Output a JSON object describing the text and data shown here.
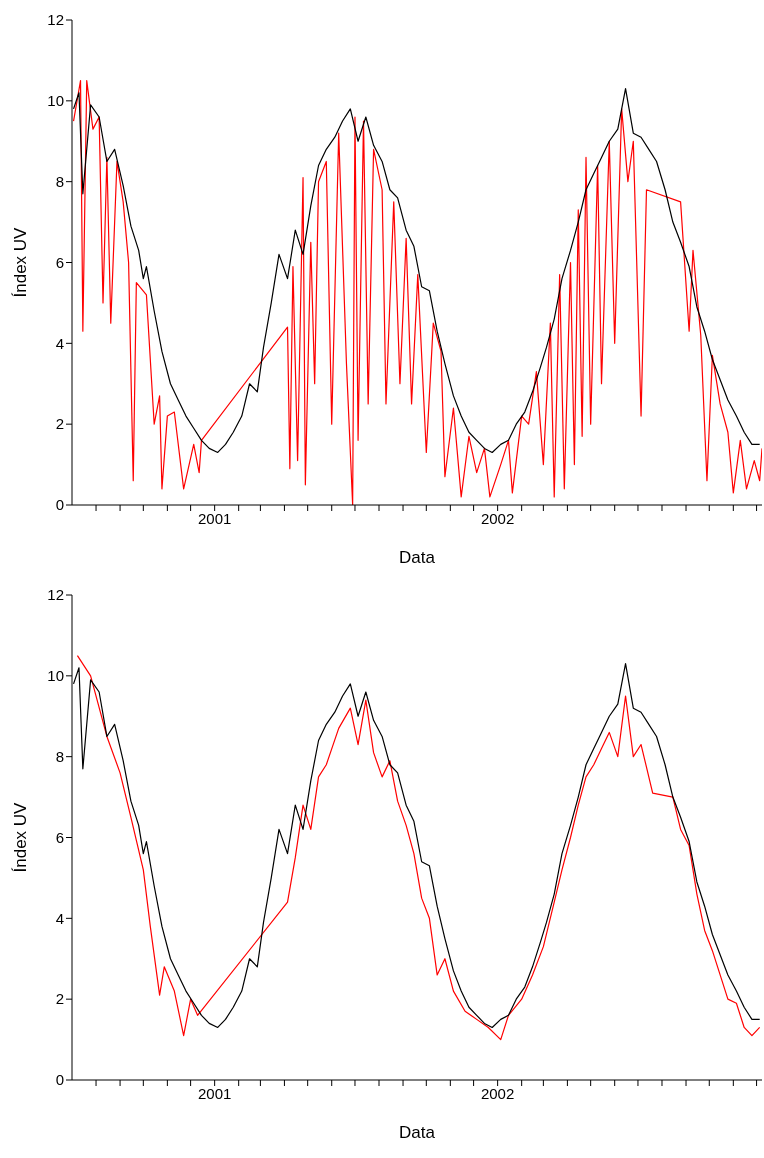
{
  "chart_data": [
    {
      "type": "line",
      "xlabel": "Data",
      "ylabel": "Índex UV",
      "xlim": [
        "2000-07-01",
        "2002-12-08"
      ],
      "ylim": [
        0,
        12
      ],
      "yticks": [
        0,
        2,
        4,
        6,
        8,
        10,
        12
      ],
      "xticks": [
        {
          "value": "2000-08-01",
          "label": null
        },
        {
          "value": "2000-09-01",
          "label": null
        },
        {
          "value": "2000-10-01",
          "label": null
        },
        {
          "value": "2000-11-01",
          "label": null
        },
        {
          "value": "2000-12-01",
          "label": null
        },
        {
          "value": "2001-01-01",
          "label": "2001"
        },
        {
          "value": "2001-02-01",
          "label": null
        },
        {
          "value": "2001-03-01",
          "label": null
        },
        {
          "value": "2001-04-01",
          "label": null
        },
        {
          "value": "2001-05-01",
          "label": null
        },
        {
          "value": "2001-06-01",
          "label": null
        },
        {
          "value": "2001-07-01",
          "label": null
        },
        {
          "value": "2001-08-01",
          "label": null
        },
        {
          "value": "2001-09-01",
          "label": null
        },
        {
          "value": "2001-10-01",
          "label": null
        },
        {
          "value": "2001-11-01",
          "label": null
        },
        {
          "value": "2001-12-01",
          "label": null
        },
        {
          "value": "2002-01-01",
          "label": "2002"
        },
        {
          "value": "2002-02-01",
          "label": null
        },
        {
          "value": "2002-03-01",
          "label": null
        },
        {
          "value": "2002-04-01",
          "label": null
        },
        {
          "value": "2002-05-01",
          "label": null
        },
        {
          "value": "2002-06-01",
          "label": null
        },
        {
          "value": "2002-07-01",
          "label": null
        },
        {
          "value": "2002-08-01",
          "label": null
        },
        {
          "value": "2002-09-01",
          "label": null
        },
        {
          "value": "2002-10-01",
          "label": null
        },
        {
          "value": "2002-11-01",
          "label": null
        },
        {
          "value": "2002-12-01",
          "label": null
        }
      ],
      "grid": false,
      "legend": false,
      "marker": "none",
      "line_style": "solid",
      "series": [
        {
          "color": "#ff0000",
          "x": [
            "2000-07-03",
            "2000-07-12",
            "2000-07-15",
            "2000-07-20",
            "2000-07-28",
            "2000-08-05",
            "2000-08-10",
            "2000-08-15",
            "2000-08-20",
            "2000-08-28",
            "2000-09-05",
            "2000-09-12",
            "2000-09-18",
            "2000-09-22",
            "2000-10-05",
            "2000-10-15",
            "2000-10-22",
            "2000-10-25",
            "2000-11-01",
            "2000-11-10",
            "2000-11-22",
            "2000-12-05",
            "2000-12-12",
            "2000-12-15",
            "2001-04-05",
            "2001-04-08",
            "2001-04-12",
            "2001-04-18",
            "2001-04-25",
            "2001-04-28",
            "2001-05-05",
            "2001-05-10",
            "2001-05-15",
            "2001-05-25",
            "2001-06-01",
            "2001-06-10",
            "2001-06-20",
            "2001-06-28",
            "2001-07-01",
            "2001-07-05",
            "2001-07-12",
            "2001-07-18",
            "2001-07-25",
            "2001-08-05",
            "2001-08-10",
            "2001-08-20",
            "2001-08-28",
            "2001-09-05",
            "2001-09-12",
            "2001-09-20",
            "2001-10-01",
            "2001-10-10",
            "2001-10-20",
            "2001-10-25",
            "2001-11-05",
            "2001-11-15",
            "2001-11-25",
            "2001-12-05",
            "2001-12-15",
            "2001-12-22",
            "2002-01-05",
            "2002-01-15",
            "2002-01-20",
            "2002-02-01",
            "2002-02-10",
            "2002-02-20",
            "2002-03-01",
            "2002-03-10",
            "2002-03-15",
            "2002-03-22",
            "2002-03-28",
            "2002-04-05",
            "2002-04-10",
            "2002-04-15",
            "2002-04-20",
            "2002-04-25",
            "2002-05-01",
            "2002-05-10",
            "2002-05-15",
            "2002-05-25",
            "2002-06-01",
            "2002-06-10",
            "2002-06-18",
            "2002-06-25",
            "2002-07-05",
            "2002-07-12",
            "2002-08-25",
            "2002-09-05",
            "2002-09-10",
            "2002-09-20",
            "2002-09-28",
            "2002-10-05",
            "2002-10-15",
            "2002-10-25",
            "2002-11-01",
            "2002-11-10",
            "2002-11-18",
            "2002-11-28",
            "2002-12-05",
            "2002-12-08"
          ],
          "values": [
            9.5,
            10.5,
            4.3,
            10.5,
            9.3,
            9.6,
            5.0,
            8.6,
            4.5,
            8.5,
            7.5,
            6.0,
            0.6,
            5.5,
            5.2,
            2.0,
            2.7,
            0.4,
            2.2,
            2.3,
            0.4,
            1.5,
            0.8,
            1.6,
            4.4,
            0.9,
            5.9,
            1.1,
            8.1,
            0.5,
            6.5,
            3.0,
            8.0,
            8.5,
            2.0,
            9.2,
            3.5,
            0.0,
            9.6,
            1.6,
            9.5,
            2.5,
            8.8,
            7.8,
            2.5,
            7.5,
            3.0,
            6.6,
            2.5,
            5.7,
            1.3,
            4.5,
            3.8,
            0.7,
            2.4,
            0.2,
            1.7,
            0.8,
            1.4,
            0.2,
            1.0,
            1.6,
            0.3,
            2.2,
            2.0,
            3.3,
            1.0,
            4.5,
            0.2,
            5.7,
            0.4,
            6.0,
            1.0,
            7.3,
            1.7,
            8.6,
            2.0,
            8.4,
            3.0,
            9.0,
            4.0,
            9.8,
            8.0,
            9.0,
            2.2,
            7.8,
            7.5,
            4.3,
            6.3,
            4.2,
            0.6,
            3.7,
            2.5,
            1.8,
            0.3,
            1.6,
            0.4,
            1.1,
            0.6,
            1.4
          ]
        },
        {
          "color": "#000000",
          "x": [
            "2000-07-03",
            "2000-07-10",
            "2000-07-15",
            "2000-07-25",
            "2000-08-05",
            "2000-08-15",
            "2000-08-25",
            "2000-09-05",
            "2000-09-15",
            "2000-09-25",
            "2000-10-01",
            "2000-10-05",
            "2000-10-15",
            "2000-10-25",
            "2000-11-05",
            "2000-11-15",
            "2000-11-25",
            "2000-12-05",
            "2000-12-15",
            "2000-12-25",
            "2001-01-05",
            "2001-01-15",
            "2001-01-25",
            "2001-02-05",
            "2001-02-15",
            "2001-02-25",
            "2001-03-05",
            "2001-03-15",
            "2001-03-25",
            "2001-04-05",
            "2001-04-15",
            "2001-04-25",
            "2001-05-05",
            "2001-05-15",
            "2001-05-25",
            "2001-06-05",
            "2001-06-15",
            "2001-06-25",
            "2001-07-05",
            "2001-07-15",
            "2001-07-25",
            "2001-08-05",
            "2001-08-15",
            "2001-08-25",
            "2001-09-05",
            "2001-09-15",
            "2001-09-25",
            "2001-10-05",
            "2001-10-15",
            "2001-10-25",
            "2001-11-05",
            "2001-11-15",
            "2001-11-25",
            "2001-12-05",
            "2001-12-15",
            "2001-12-25",
            "2002-01-05",
            "2002-01-15",
            "2002-01-25",
            "2002-02-05",
            "2002-02-15",
            "2002-02-25",
            "2002-03-05",
            "2002-03-15",
            "2002-03-25",
            "2002-04-05",
            "2002-04-15",
            "2002-04-25",
            "2002-05-05",
            "2002-05-15",
            "2002-05-25",
            "2002-06-05",
            "2002-06-15",
            "2002-06-25",
            "2002-07-05",
            "2002-07-15",
            "2002-07-25",
            "2002-08-05",
            "2002-08-15",
            "2002-08-25",
            "2002-09-05",
            "2002-09-15",
            "2002-09-25",
            "2002-10-05",
            "2002-10-15",
            "2002-10-25",
            "2002-11-05",
            "2002-11-15",
            "2002-11-25",
            "2002-12-05"
          ],
          "values": [
            9.8,
            10.2,
            7.7,
            9.9,
            9.6,
            8.5,
            8.8,
            7.9,
            6.9,
            6.3,
            5.6,
            5.9,
            4.8,
            3.8,
            3.0,
            2.6,
            2.2,
            1.9,
            1.6,
            1.4,
            1.3,
            1.5,
            1.8,
            2.2,
            3.0,
            2.8,
            3.9,
            5.0,
            6.2,
            5.6,
            6.8,
            6.2,
            7.4,
            8.4,
            8.8,
            9.1,
            9.5,
            9.8,
            9.0,
            9.6,
            8.9,
            8.5,
            7.8,
            7.6,
            6.8,
            6.4,
            5.4,
            5.3,
            4.3,
            3.5,
            2.7,
            2.2,
            1.8,
            1.6,
            1.4,
            1.3,
            1.5,
            1.6,
            2.0,
            2.3,
            2.8,
            3.4,
            3.9,
            4.6,
            5.6,
            6.3,
            7.0,
            7.8,
            8.2,
            8.6,
            9.0,
            9.3,
            10.3,
            9.2,
            9.1,
            8.8,
            8.5,
            7.8,
            7.0,
            6.5,
            5.9,
            4.9,
            4.3,
            3.6,
            3.1,
            2.6,
            2.2,
            1.8,
            1.5,
            1.5
          ]
        }
      ]
    },
    {
      "type": "line",
      "xlabel": "Data",
      "ylabel": "Índex UV",
      "xlim": [
        "2000-07-01",
        "2002-12-08"
      ],
      "ylim": [
        0,
        12
      ],
      "yticks": [
        0,
        2,
        4,
        6,
        8,
        10,
        12
      ],
      "xticks": [
        {
          "value": "2000-08-01",
          "label": null
        },
        {
          "value": "2000-09-01",
          "label": null
        },
        {
          "value": "2000-10-01",
          "label": null
        },
        {
          "value": "2000-11-01",
          "label": null
        },
        {
          "value": "2000-12-01",
          "label": null
        },
        {
          "value": "2001-01-01",
          "label": "2001"
        },
        {
          "value": "2001-02-01",
          "label": null
        },
        {
          "value": "2001-03-01",
          "label": null
        },
        {
          "value": "2001-04-01",
          "label": null
        },
        {
          "value": "2001-05-01",
          "label": null
        },
        {
          "value": "2001-06-01",
          "label": null
        },
        {
          "value": "2001-07-01",
          "label": null
        },
        {
          "value": "2001-08-01",
          "label": null
        },
        {
          "value": "2001-09-01",
          "label": null
        },
        {
          "value": "2001-10-01",
          "label": null
        },
        {
          "value": "2001-11-01",
          "label": null
        },
        {
          "value": "2001-12-01",
          "label": null
        },
        {
          "value": "2002-01-01",
          "label": "2002"
        },
        {
          "value": "2002-02-01",
          "label": null
        },
        {
          "value": "2002-03-01",
          "label": null
        },
        {
          "value": "2002-04-01",
          "label": null
        },
        {
          "value": "2002-05-01",
          "label": null
        },
        {
          "value": "2002-06-01",
          "label": null
        },
        {
          "value": "2002-07-01",
          "label": null
        },
        {
          "value": "2002-08-01",
          "label": null
        },
        {
          "value": "2002-09-01",
          "label": null
        },
        {
          "value": "2002-10-01",
          "label": null
        },
        {
          "value": "2002-11-01",
          "label": null
        },
        {
          "value": "2002-12-01",
          "label": null
        }
      ],
      "grid": false,
      "legend": false,
      "marker": "none",
      "line_style": "solid",
      "series": [
        {
          "color": "#ff0000",
          "x": [
            "2000-07-08",
            "2000-07-25",
            "2000-08-15",
            "2000-09-01",
            "2000-09-15",
            "2000-10-01",
            "2000-10-10",
            "2000-10-22",
            "2000-10-28",
            "2000-11-10",
            "2000-11-22",
            "2000-12-01",
            "2000-12-10",
            "2001-04-05",
            "2001-04-15",
            "2001-04-25",
            "2001-05-05",
            "2001-05-15",
            "2001-05-25",
            "2001-06-10",
            "2001-06-25",
            "2001-07-05",
            "2001-07-15",
            "2001-07-25",
            "2001-08-05",
            "2001-08-15",
            "2001-08-25",
            "2001-09-05",
            "2001-09-15",
            "2001-09-25",
            "2001-10-05",
            "2001-10-15",
            "2001-10-25",
            "2001-11-05",
            "2001-11-20",
            "2001-12-05",
            "2001-12-20",
            "2002-01-05",
            "2002-01-15",
            "2002-02-01",
            "2002-02-15",
            "2002-03-01",
            "2002-03-15",
            "2002-03-25",
            "2002-04-05",
            "2002-04-15",
            "2002-04-25",
            "2002-05-05",
            "2002-05-15",
            "2002-05-25",
            "2002-06-05",
            "2002-06-15",
            "2002-06-25",
            "2002-07-05",
            "2002-07-20",
            "2002-08-15",
            "2002-08-25",
            "2002-09-05",
            "2002-09-15",
            "2002-09-25",
            "2002-10-05",
            "2002-10-15",
            "2002-10-25",
            "2002-11-05",
            "2002-11-15",
            "2002-11-25",
            "2002-12-05"
          ],
          "values": [
            10.5,
            10.0,
            8.5,
            7.6,
            6.5,
            5.2,
            3.8,
            2.1,
            2.8,
            2.2,
            1.1,
            2.0,
            1.6,
            4.4,
            5.5,
            6.8,
            6.2,
            7.5,
            7.8,
            8.7,
            9.2,
            8.3,
            9.4,
            8.1,
            7.5,
            7.9,
            6.9,
            6.3,
            5.6,
            4.5,
            4.0,
            2.6,
            3.0,
            2.2,
            1.7,
            1.5,
            1.3,
            1.0,
            1.6,
            2.0,
            2.6,
            3.3,
            4.4,
            5.2,
            6.0,
            6.8,
            7.5,
            7.8,
            8.2,
            8.6,
            8.0,
            9.5,
            8.0,
            8.3,
            7.1,
            7.0,
            6.2,
            5.8,
            4.6,
            3.7,
            3.2,
            2.6,
            2.0,
            1.9,
            1.3,
            1.1,
            1.3
          ]
        },
        {
          "color": "#000000",
          "x": [
            "2000-07-03",
            "2000-07-10",
            "2000-07-15",
            "2000-07-25",
            "2000-08-05",
            "2000-08-15",
            "2000-08-25",
            "2000-09-05",
            "2000-09-15",
            "2000-09-25",
            "2000-10-01",
            "2000-10-05",
            "2000-10-15",
            "2000-10-25",
            "2000-11-05",
            "2000-11-15",
            "2000-11-25",
            "2000-12-05",
            "2000-12-15",
            "2000-12-25",
            "2001-01-05",
            "2001-01-15",
            "2001-01-25",
            "2001-02-05",
            "2001-02-15",
            "2001-02-25",
            "2001-03-05",
            "2001-03-15",
            "2001-03-25",
            "2001-04-05",
            "2001-04-15",
            "2001-04-25",
            "2001-05-05",
            "2001-05-15",
            "2001-05-25",
            "2001-06-05",
            "2001-06-15",
            "2001-06-25",
            "2001-07-05",
            "2001-07-15",
            "2001-07-25",
            "2001-08-05",
            "2001-08-15",
            "2001-08-25",
            "2001-09-05",
            "2001-09-15",
            "2001-09-25",
            "2001-10-05",
            "2001-10-15",
            "2001-10-25",
            "2001-11-05",
            "2001-11-15",
            "2001-11-25",
            "2001-12-05",
            "2001-12-15",
            "2001-12-25",
            "2002-01-05",
            "2002-01-15",
            "2002-01-25",
            "2002-02-05",
            "2002-02-15",
            "2002-02-25",
            "2002-03-05",
            "2002-03-15",
            "2002-03-25",
            "2002-04-05",
            "2002-04-15",
            "2002-04-25",
            "2002-05-05",
            "2002-05-15",
            "2002-05-25",
            "2002-06-05",
            "2002-06-15",
            "2002-06-25",
            "2002-07-05",
            "2002-07-15",
            "2002-07-25",
            "2002-08-05",
            "2002-08-15",
            "2002-08-25",
            "2002-09-05",
            "2002-09-15",
            "2002-09-25",
            "2002-10-05",
            "2002-10-15",
            "2002-10-25",
            "2002-11-05",
            "2002-11-15",
            "2002-11-25",
            "2002-12-05"
          ],
          "values": [
            9.8,
            10.2,
            7.7,
            9.9,
            9.6,
            8.5,
            8.8,
            7.9,
            6.9,
            6.3,
            5.6,
            5.9,
            4.8,
            3.8,
            3.0,
            2.6,
            2.2,
            1.9,
            1.6,
            1.4,
            1.3,
            1.5,
            1.8,
            2.2,
            3.0,
            2.8,
            3.9,
            5.0,
            6.2,
            5.6,
            6.8,
            6.2,
            7.4,
            8.4,
            8.8,
            9.1,
            9.5,
            9.8,
            9.0,
            9.6,
            8.9,
            8.5,
            7.8,
            7.6,
            6.8,
            6.4,
            5.4,
            5.3,
            4.3,
            3.5,
            2.7,
            2.2,
            1.8,
            1.6,
            1.4,
            1.3,
            1.5,
            1.6,
            2.0,
            2.3,
            2.8,
            3.4,
            3.9,
            4.6,
            5.6,
            6.3,
            7.0,
            7.8,
            8.2,
            8.6,
            9.0,
            9.3,
            10.3,
            9.2,
            9.1,
            8.8,
            8.5,
            7.8,
            7.0,
            6.5,
            5.9,
            4.9,
            4.3,
            3.6,
            3.1,
            2.6,
            2.2,
            1.8,
            1.5,
            1.5
          ]
        }
      ]
    }
  ]
}
